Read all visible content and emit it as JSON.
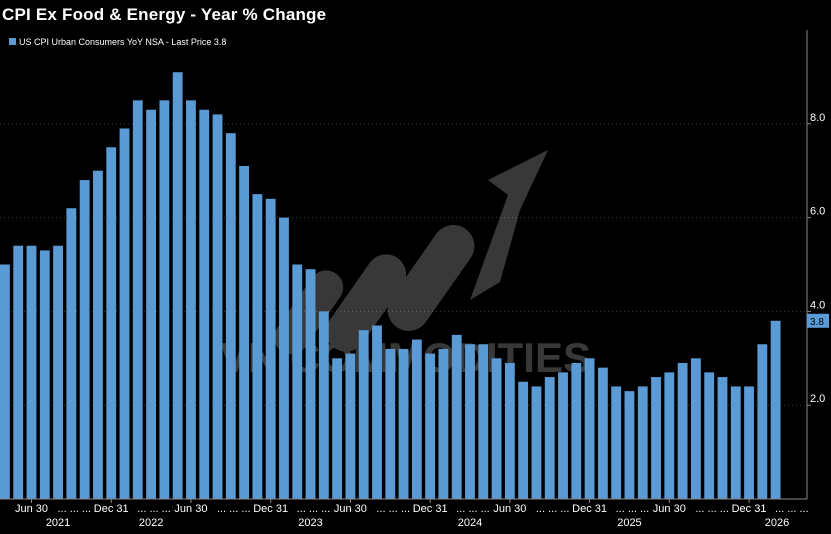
{
  "chart_data": {
    "type": "bar",
    "title": "CPI Ex Food & Energy - Year % Change",
    "legend": "US CPI Urban Consumers YoY NSA - Last Price 3.8",
    "legend_position": "top-left",
    "last_price_label": "3.8",
    "last_price": 3.8,
    "xlabel": "",
    "ylabel": "",
    "ylim": [
      0,
      10
    ],
    "yticks": [
      2.0,
      4.0,
      6.0,
      8.0
    ],
    "ytick_labels": [
      "2.0",
      "4.0",
      "6.0",
      "8.0"
    ],
    "grid": true,
    "bar_color": "#5b9bd5",
    "background": "#000000",
    "x_tick_labels": [
      "Jun 30",
      "Dec 31",
      "Jun 30",
      "Dec 31",
      "Jun 30",
      "Dec 31",
      "Jun 30",
      "Dec 31",
      "Jun 30",
      "Dec 31"
    ],
    "x_year_labels": [
      "2021",
      "2022",
      "2023",
      "2024",
      "2025",
      "2026"
    ],
    "watermark": "VN COMMODITIES",
    "series": [
      {
        "values": [
          5.0,
          5.4,
          5.4,
          5.3,
          5.4,
          6.2,
          6.8,
          7.0,
          7.5,
          7.9,
          8.5,
          8.3,
          8.5,
          9.1,
          8.5,
          8.3,
          8.2,
          7.8,
          7.1,
          6.5,
          6.4,
          6.0,
          5.0,
          4.9,
          4.0,
          3.0,
          3.1,
          3.6,
          3.7,
          3.2,
          3.2,
          3.4,
          3.1,
          3.2,
          3.5,
          3.3,
          3.3,
          3.0,
          2.9,
          2.5,
          2.4,
          2.6,
          2.7,
          2.9,
          3.0,
          2.8,
          2.4,
          2.3,
          2.4,
          2.6,
          2.7,
          2.9,
          3.0,
          2.7,
          2.6,
          2.4,
          2.4,
          3.3,
          3.8
        ]
      }
    ]
  }
}
